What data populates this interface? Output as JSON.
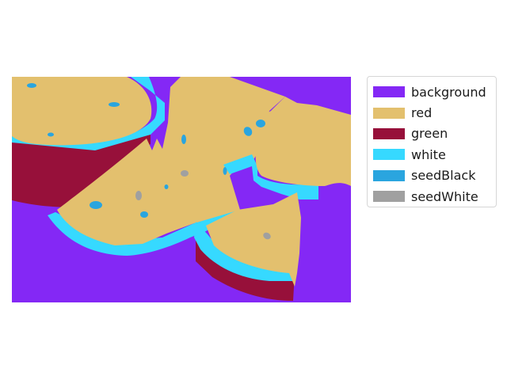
{
  "legend": {
    "items": [
      {
        "label": "background",
        "color": "#8428F5"
      },
      {
        "label": "red",
        "color": "#E3C06E"
      },
      {
        "label": "green",
        "color": "#97103A"
      },
      {
        "label": "white",
        "color": "#36D9FF"
      },
      {
        "label": "seedBlack",
        "color": "#2AA5DF"
      },
      {
        "label": "seedWhite",
        "color": "#A0A0A0"
      }
    ]
  },
  "image": {
    "description_colors": {
      "background": "#8428F5",
      "flesh": "#E3C06E",
      "rind": "#97103A",
      "pith": "#36D9FF",
      "seed_dark": "#2AA5DF",
      "seed_light": "#A0A0A0"
    }
  }
}
